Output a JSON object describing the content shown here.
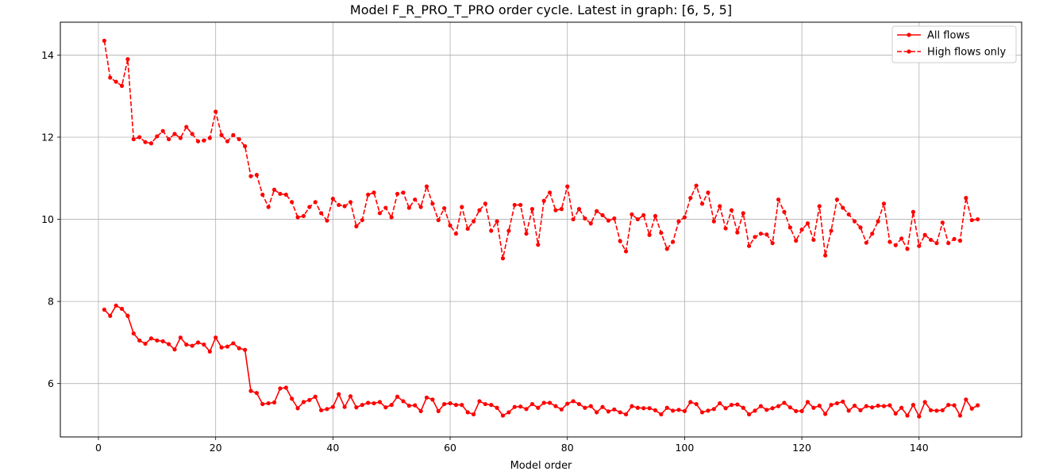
{
  "chart_data": {
    "type": "line",
    "title": "Model F_R_PRO_T_PRO order cycle. Latest in graph: [6, 5, 5]",
    "xlabel": "Model order",
    "ylabel": "",
    "xlim": [
      -6.5,
      157.5
    ],
    "ylim": [
      4.7,
      14.8
    ],
    "xticks": [
      0,
      20,
      40,
      60,
      80,
      100,
      120,
      140
    ],
    "yticks": [
      6,
      8,
      10,
      12,
      14
    ],
    "grid": true,
    "legend_position": "top-right",
    "series": [
      {
        "name": "All flows",
        "color": "#ff0000",
        "line_style": "solid",
        "marker": "circle",
        "x_start": 1,
        "x_step": 1,
        "values": [
          7.8,
          7.65,
          7.9,
          7.82,
          7.65,
          7.22,
          7.05,
          6.97,
          7.1,
          7.05,
          7.03,
          6.96,
          6.83,
          7.12,
          6.95,
          6.92,
          7.0,
          6.95,
          6.78,
          7.12,
          6.88,
          6.9,
          6.98,
          6.86,
          6.82,
          5.82,
          5.77,
          5.5,
          5.52,
          5.54,
          5.88,
          5.9,
          5.63,
          5.4,
          5.55,
          5.6,
          5.68,
          5.35,
          5.38,
          5.43,
          5.74,
          5.43,
          5.69,
          5.42,
          5.48,
          5.53,
          5.52,
          5.55,
          5.42,
          5.48,
          5.68,
          5.57,
          5.46,
          5.47,
          5.33,
          5.66,
          5.61,
          5.33,
          5.5,
          5.52,
          5.48,
          5.48,
          5.3,
          5.25,
          5.57,
          5.5,
          5.48,
          5.41,
          5.22,
          5.3,
          5.43,
          5.44,
          5.38,
          5.5,
          5.41,
          5.53,
          5.53,
          5.45,
          5.37,
          5.51,
          5.57,
          5.5,
          5.41,
          5.45,
          5.3,
          5.43,
          5.32,
          5.37,
          5.3,
          5.25,
          5.45,
          5.41,
          5.4,
          5.4,
          5.35,
          5.25,
          5.41,
          5.34,
          5.36,
          5.33,
          5.55,
          5.5,
          5.3,
          5.34,
          5.38,
          5.52,
          5.4,
          5.48,
          5.49,
          5.41,
          5.25,
          5.34,
          5.45,
          5.36,
          5.4,
          5.45,
          5.53,
          5.42,
          5.33,
          5.33,
          5.55,
          5.41,
          5.46,
          5.26,
          5.48,
          5.52,
          5.56,
          5.34,
          5.46,
          5.35,
          5.45,
          5.42,
          5.46,
          5.45,
          5.47,
          5.27,
          5.41,
          5.22,
          5.48,
          5.2,
          5.55,
          5.35,
          5.34,
          5.35,
          5.48,
          5.47,
          5.22,
          5.61,
          5.39,
          5.47
        ]
      },
      {
        "name": "High flows only",
        "color": "#ff0000",
        "line_style": "dashed",
        "marker": "circle",
        "x_start": 1,
        "x_step": 1,
        "values": [
          14.35,
          13.45,
          13.35,
          13.25,
          13.9,
          11.95,
          12.0,
          11.88,
          11.85,
          12.02,
          12.15,
          11.95,
          12.08,
          11.98,
          12.25,
          12.08,
          11.9,
          11.92,
          11.98,
          12.62,
          12.05,
          11.9,
          12.05,
          11.95,
          11.78,
          11.05,
          11.08,
          10.6,
          10.3,
          10.72,
          10.62,
          10.6,
          10.42,
          10.05,
          10.08,
          10.3,
          10.42,
          10.15,
          9.97,
          10.5,
          10.35,
          10.32,
          10.42,
          9.83,
          9.98,
          10.6,
          10.65,
          10.15,
          10.28,
          10.05,
          10.62,
          10.65,
          10.28,
          10.48,
          10.3,
          10.8,
          10.38,
          9.98,
          10.27,
          9.85,
          9.65,
          10.3,
          9.77,
          9.95,
          10.22,
          10.38,
          9.72,
          9.95,
          9.05,
          9.72,
          10.35,
          10.35,
          9.65,
          10.25,
          9.38,
          10.45,
          10.65,
          10.22,
          10.25,
          10.8,
          10.0,
          10.25,
          10.02,
          9.9,
          10.2,
          10.1,
          9.97,
          10.02,
          9.47,
          9.22,
          10.12,
          10.0,
          10.1,
          9.62,
          10.08,
          9.67,
          9.28,
          9.45,
          9.95,
          10.05,
          10.52,
          10.82,
          10.38,
          10.65,
          9.95,
          10.32,
          9.78,
          10.22,
          9.68,
          10.15,
          9.35,
          9.57,
          9.65,
          9.63,
          9.42,
          10.48,
          10.18,
          9.8,
          9.48,
          9.75,
          9.9,
          9.5,
          10.32,
          9.12,
          9.72,
          10.48,
          10.28,
          10.12,
          9.95,
          9.8,
          9.43,
          9.65,
          9.95,
          10.38,
          9.45,
          9.37,
          9.53,
          9.28,
          10.18,
          9.35,
          9.62,
          9.5,
          9.42,
          9.92,
          9.42,
          9.52,
          9.48,
          10.52,
          9.98,
          10.0
        ]
      }
    ]
  }
}
